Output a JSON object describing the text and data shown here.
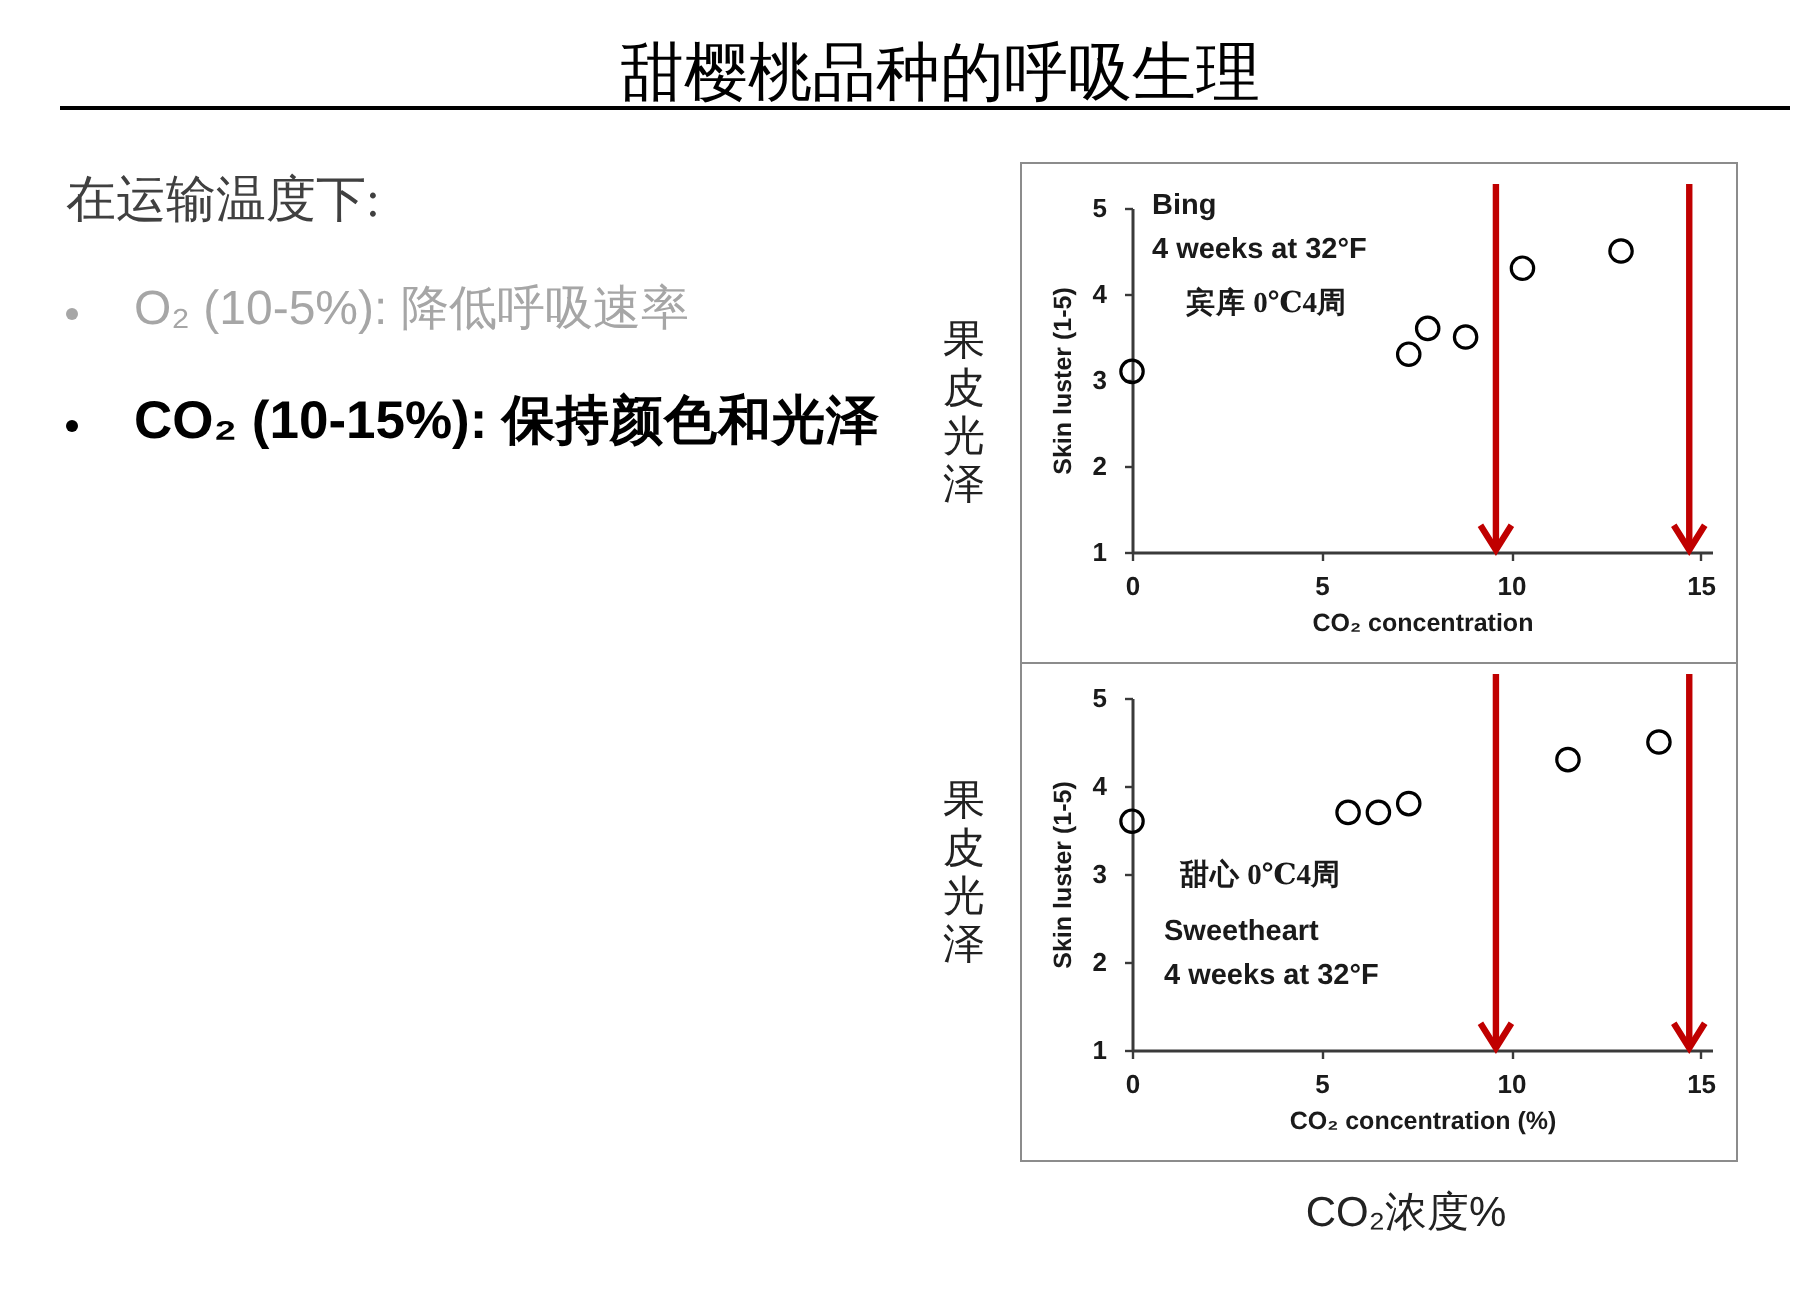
{
  "chart_data": [
    {
      "type": "other",
      "title": "甜樱桃品种的呼吸生理",
      "annotations": [
        "在运输温度下:",
        "O₂ (10-5%): 降低呼吸速率",
        "CO₂ (10-15%): 保持颜色和光泽"
      ]
    },
    {
      "type": "scatter",
      "xlabel": "CO₂ concentration",
      "ylabel": "Skin luster (1-5)",
      "x": [
        0,
        7.3,
        7.8,
        8.8,
        10.3,
        12.9
      ],
      "values": [
        3.1,
        3.3,
        3.6,
        3.5,
        4.3,
        4.5
      ],
      "color": "#000000",
      "marker": "circle",
      "xlim": [
        0,
        15.3
      ],
      "xticks": [
        0,
        5,
        10,
        15
      ],
      "ylim": [
        1,
        5
      ],
      "yticks": [
        1,
        2,
        3,
        4,
        5
      ],
      "ref_lines": [
        {
          "axis": "x",
          "value": 9.6,
          "color": "#c00000"
        },
        {
          "axis": "x",
          "value": 14.7,
          "color": "#c00000"
        }
      ],
      "annotations": [
        "Bing",
        "4 weeks at 32°F",
        "宾库 0℃4周",
        "果皮光泽"
      ]
    },
    {
      "type": "scatter",
      "xlabel": "CO₂ concentration (%)",
      "ylabel": "Skin luster (1-5)",
      "x": [
        0,
        5.7,
        6.5,
        7.3,
        11.5,
        13.9
      ],
      "values": [
        3.6,
        3.7,
        3.7,
        3.8,
        4.3,
        4.5
      ],
      "color": "#000000",
      "marker": "circle",
      "xlim": [
        0,
        15.3
      ],
      "xticks": [
        0,
        5,
        10,
        15
      ],
      "ylim": [
        1,
        5
      ],
      "yticks": [
        1,
        2,
        3,
        4,
        5
      ],
      "ref_lines": [
        {
          "axis": "x",
          "value": 9.6,
          "color": "#c00000"
        },
        {
          "axis": "x",
          "value": 14.7,
          "color": "#c00000"
        }
      ],
      "annotations": [
        "甜心 0℃4周",
        "Sweetheart",
        "4 weeks at 32°F",
        "果皮光泽",
        "CO₂浓度%"
      ]
    }
  ]
}
